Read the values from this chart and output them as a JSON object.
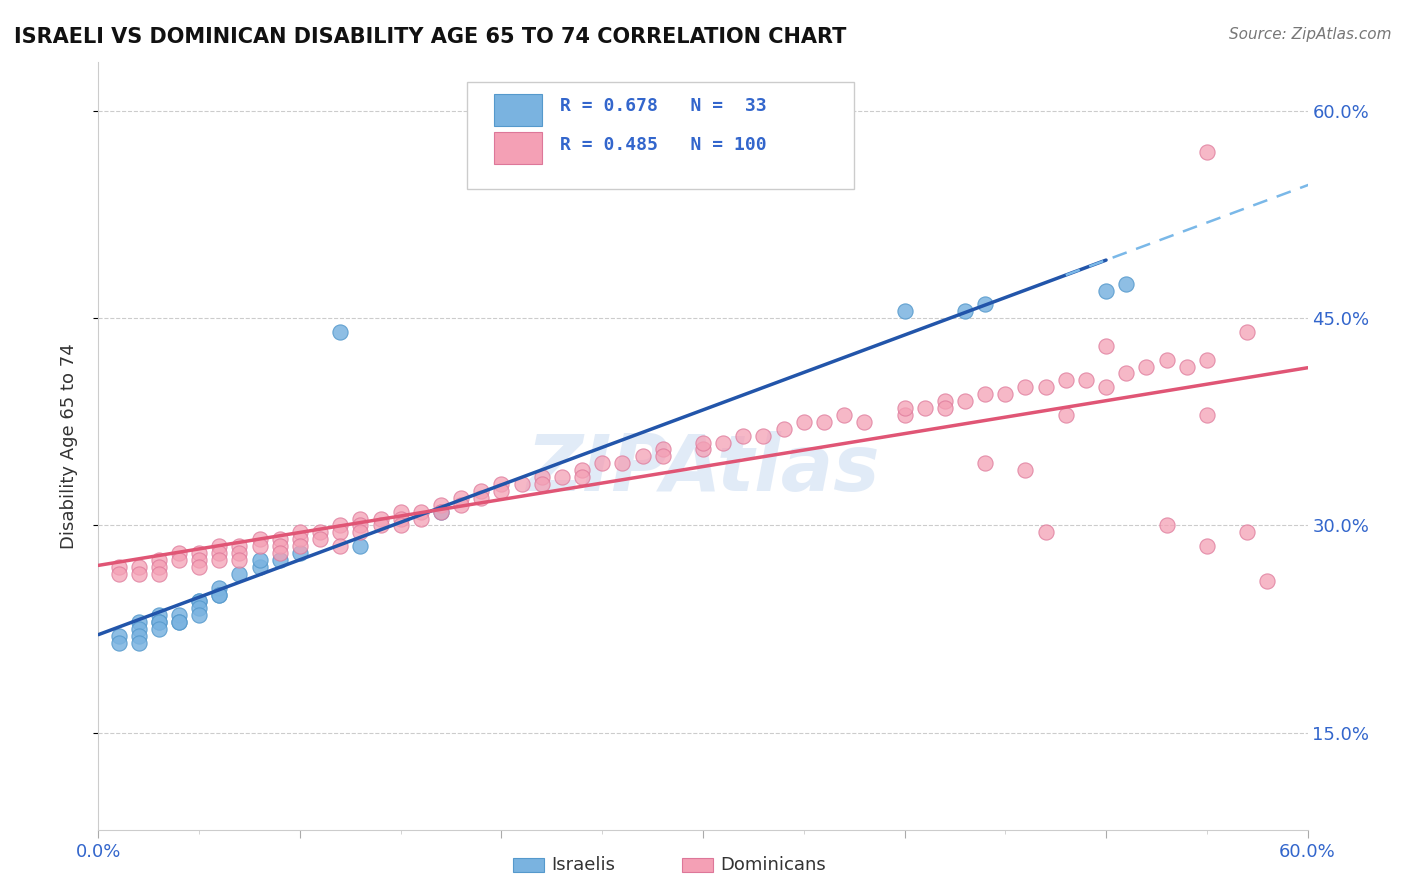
{
  "title": "ISRAELI VS DOMINICAN DISABILITY AGE 65 TO 74 CORRELATION CHART",
  "source_text": "Source: ZipAtlas.com",
  "ylabel": "Disability Age 65 to 74",
  "xlim": [
    0.0,
    0.6
  ],
  "ylim": [
    0.08,
    0.635
  ],
  "ytick_positions": [
    0.15,
    0.3,
    0.45,
    0.6
  ],
  "ytick_labels": [
    "15.0%",
    "30.0%",
    "45.0%",
    "60.0%"
  ],
  "R_israeli": 0.678,
  "N_israeli": 33,
  "R_dominican": 0.485,
  "N_dominican": 100,
  "israeli_color": "#7ab3e0",
  "dominican_color": "#f4a0b5",
  "israeli_line_color": "#2255aa",
  "dominican_line_color": "#e05575",
  "watermark": "ZIPAtlas",
  "watermark_color": "#c5d8f0",
  "legend_color": "#3366cc",
  "isr_line_start_x": 0.0,
  "isr_line_start_y": 0.195,
  "isr_line_end_x": 0.5,
  "isr_line_end_y": 0.485,
  "dom_line_start_x": 0.0,
  "dom_line_start_y": 0.265,
  "dom_line_end_x": 0.6,
  "dom_line_end_y": 0.395
}
